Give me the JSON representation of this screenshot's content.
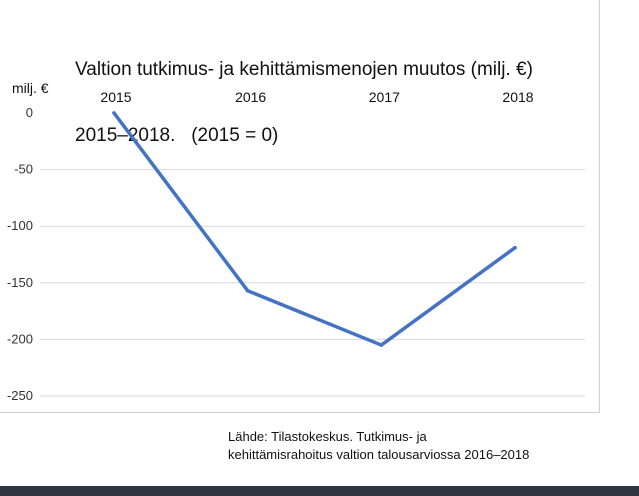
{
  "chart_data": {
    "type": "line",
    "title": [
      "Valtion tutkimus- ja kehittämismenojen muutos (milj. €)",
      "2015–2018.   (2015 = 0)"
    ],
    "ylabel": "milj. €",
    "xlabel": "",
    "categories": [
      "2015",
      "2016",
      "2017",
      "2018"
    ],
    "series": [
      {
        "values": [
          0,
          -157,
          -205,
          -119
        ]
      }
    ],
    "y_ticks": [
      0,
      -50,
      -100,
      -150,
      -200,
      -250
    ],
    "ylim": [
      -260,
      0
    ],
    "grid": true,
    "x_axis_position": "top",
    "source": [
      "Lähde: Tilastokeskus. Tutkimus- ja",
      "kehittämisrahoitus valtion talousarviossa 2016–2018"
    ],
    "colors": {
      "line": "#4472c4",
      "grid": "#d9d9d9"
    }
  }
}
